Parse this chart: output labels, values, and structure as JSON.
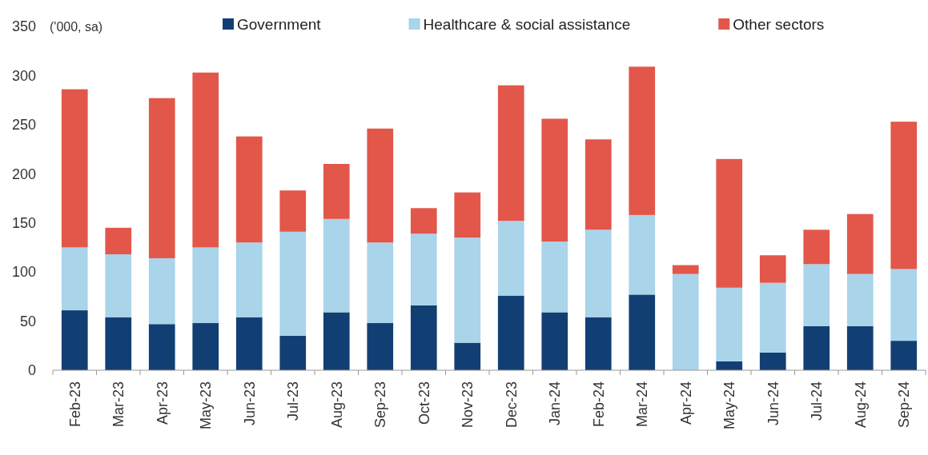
{
  "chart_data": {
    "type": "bar",
    "stacked": true,
    "ylabel": "('000, sa)",
    "legend": "top",
    "categories": [
      "Feb-23",
      "Mar-23",
      "Apr-23",
      "May-23",
      "Jun-23",
      "Jul-23",
      "Aug-23",
      "Sep-23",
      "Oct-23",
      "Nov-23",
      "Dec-23",
      "Jan-24",
      "Feb-24",
      "Mar-24",
      "Apr-24",
      "May-24",
      "Jun-24",
      "Jul-24",
      "Aug-24",
      "Sep-24"
    ],
    "series": [
      {
        "name": "Government",
        "color": "#123f73",
        "values": [
          61,
          54,
          47,
          48,
          54,
          35,
          59,
          48,
          66,
          28,
          76,
          59,
          54,
          77,
          0,
          9,
          18,
          45,
          45,
          30
        ]
      },
      {
        "name": "Healthcare & social assistance",
        "color": "#a9d4ea",
        "values": [
          64,
          64,
          67,
          77,
          76,
          106,
          95,
          82,
          73,
          107,
          76,
          72,
          89,
          81,
          98,
          75,
          71,
          63,
          53,
          73
        ]
      },
      {
        "name": "Other sectors",
        "color": "#e2574a",
        "values": [
          161,
          27,
          163,
          178,
          108,
          42,
          56,
          116,
          26,
          46,
          138,
          125,
          92,
          151,
          9,
          131,
          28,
          35,
          61,
          150
        ]
      }
    ],
    "ylim": [
      0,
      350
    ],
    "yticks": [
      0,
      50,
      100,
      150,
      200,
      250,
      300,
      350
    ]
  }
}
